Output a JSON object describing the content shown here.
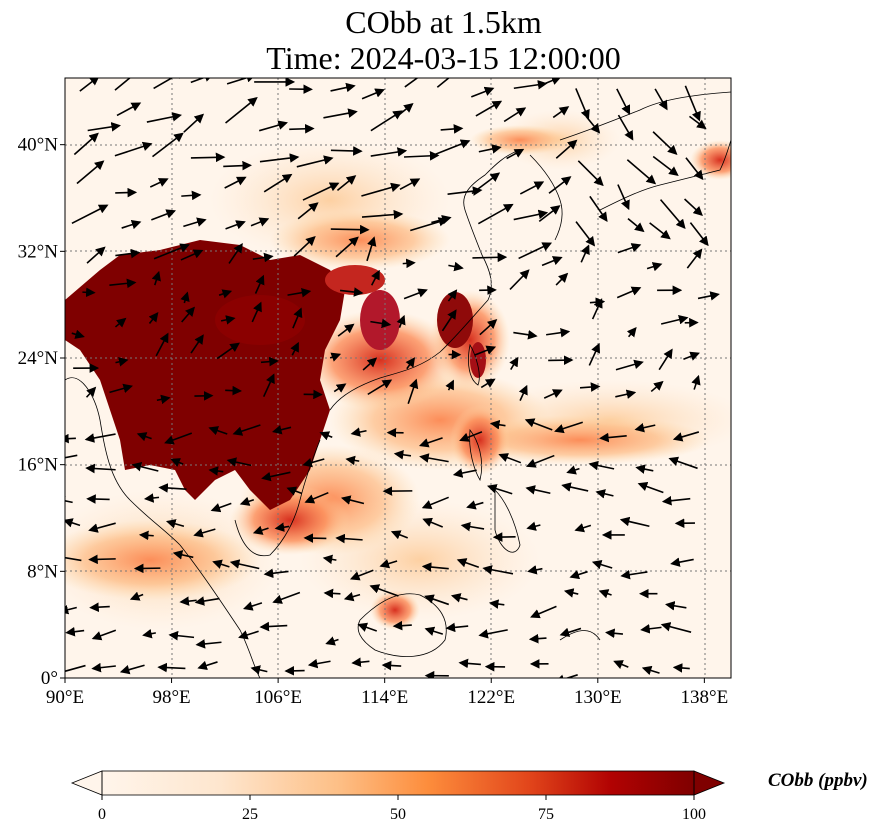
{
  "title": {
    "line1": "CObb at 1.5km",
    "line2": "Time: 2024-03-15 12:00:00"
  },
  "map": {
    "variable": "CObb",
    "level": "1.5km",
    "time": "2024-03-15 12:00:00",
    "lon_range": [
      90,
      140
    ],
    "lat_range": [
      0,
      45
    ],
    "lon_ticks": [
      {
        "value": 90,
        "label": "90°E"
      },
      {
        "value": 98,
        "label": "98°E"
      },
      {
        "value": 106,
        "label": "106°E"
      },
      {
        "value": 114,
        "label": "114°E"
      },
      {
        "value": 122,
        "label": "122°E"
      },
      {
        "value": 130,
        "label": "130°E"
      },
      {
        "value": 138,
        "label": "138°E"
      }
    ],
    "lat_ticks": [
      {
        "value": 0,
        "label": "0°"
      },
      {
        "value": 8,
        "label": "8°N"
      },
      {
        "value": 16,
        "label": "16°N"
      },
      {
        "value": 24,
        "label": "24°N"
      },
      {
        "value": 32,
        "label": "32°N"
      },
      {
        "value": 40,
        "label": "40°N"
      }
    ],
    "gridlines": true,
    "colormap_colors": [
      "#fff5eb",
      "#fdd9a8",
      "#fc8d59",
      "#d7301f",
      "#7f0000"
    ],
    "colorbar": {
      "label": "CObb (ppbv)",
      "min": 0,
      "max": 100,
      "extend": "both",
      "ticks": [
        {
          "value": 0,
          "label": "0"
        },
        {
          "value": 25,
          "label": "25"
        },
        {
          "value": 50,
          "label": "50"
        },
        {
          "value": 75,
          "label": "75"
        },
        {
          "value": 100,
          "label": "100"
        }
      ]
    },
    "high_concentration_regions": [
      {
        "lon": 103,
        "lat": 24,
        "value": 100
      },
      {
        "lon": 97,
        "lat": 28,
        "value": 100
      },
      {
        "lon": 110,
        "lat": 28,
        "value": 90
      },
      {
        "lon": 119.5,
        "lat": 27,
        "value": 85
      },
      {
        "lon": 121,
        "lat": 24,
        "value": 85
      },
      {
        "lon": 120.5,
        "lat": 18,
        "value": 70
      },
      {
        "lon": 125,
        "lat": 17,
        "value": 45
      },
      {
        "lon": 99,
        "lat": 10,
        "value": 40
      },
      {
        "lon": 115,
        "lat": 5,
        "value": 70
      },
      {
        "lon": 139,
        "lat": 38.5,
        "value": 60
      }
    ]
  }
}
